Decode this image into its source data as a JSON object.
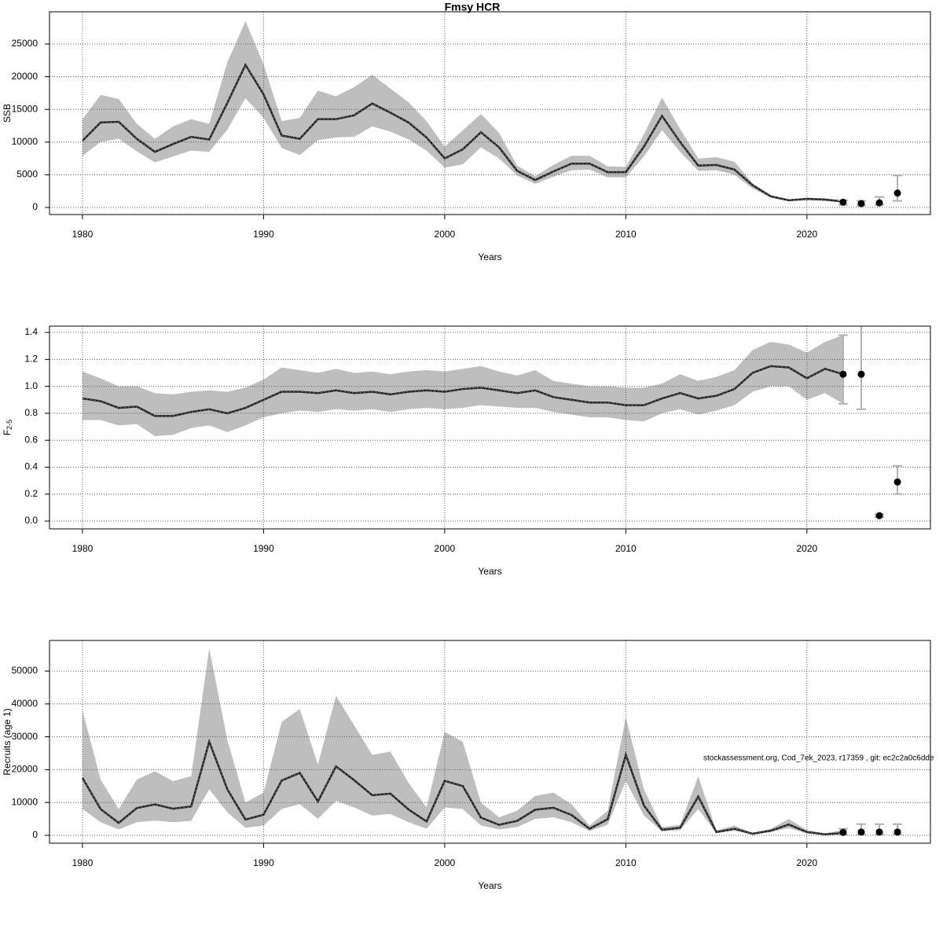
{
  "chart_data": [
    {
      "type": "line",
      "title": "Fmsy HCR",
      "xlabel": "Years",
      "ylabel": "SSB",
      "x": [
        1980,
        1981,
        1982,
        1983,
        1984,
        1985,
        1986,
        1987,
        1988,
        1989,
        1990,
        1991,
        1992,
        1993,
        1994,
        1995,
        1996,
        1997,
        1998,
        1999,
        2000,
        2001,
        2002,
        2003,
        2004,
        2005,
        2006,
        2007,
        2008,
        2009,
        2010,
        2011,
        2012,
        2013,
        2014,
        2015,
        2016,
        2017,
        2018,
        2019,
        2020,
        2021,
        2022
      ],
      "values": [
        10200,
        13000,
        13100,
        10500,
        8500,
        9700,
        10800,
        10400,
        16000,
        21800,
        17300,
        11000,
        10500,
        13500,
        13500,
        14100,
        15900,
        14500,
        13000,
        10700,
        7500,
        8900,
        11500,
        9200,
        5600,
        4200,
        5500,
        6700,
        6700,
        5400,
        5400,
        9300,
        14000,
        10000,
        6400,
        6500,
        5800,
        3400,
        1700,
        1100,
        1300,
        1200,
        900
      ],
      "lower": [
        7900,
        10000,
        10500,
        8600,
        6900,
        7800,
        8700,
        8500,
        11900,
        16700,
        13700,
        9100,
        8000,
        10300,
        10700,
        10800,
        12400,
        11600,
        10400,
        8700,
        6100,
        6600,
        9200,
        7500,
        4900,
        3600,
        4700,
        5700,
        5800,
        4600,
        4600,
        7800,
        11800,
        8500,
        5600,
        5700,
        5000,
        2900,
        1500,
        950,
        1150,
        1000,
        750
      ],
      "upper": [
        13500,
        17200,
        16600,
        12800,
        10500,
        12400,
        13500,
        12800,
        22200,
        28500,
        21900,
        13200,
        13700,
        17900,
        17000,
        18400,
        20300,
        18200,
        16100,
        13200,
        9300,
        11800,
        14300,
        11400,
        6400,
        4800,
        6500,
        7900,
        7900,
        6300,
        6200,
        11200,
        16800,
        12000,
        7500,
        7700,
        7000,
        3700,
        1900,
        1200,
        1500,
        1400,
        1100
      ],
      "forecast": {
        "x": [
          2022,
          2023,
          2024,
          2025
        ],
        "values": [
          800,
          600,
          700,
          2200
        ],
        "lower": [
          400,
          300,
          400,
          1000
        ],
        "upper": [
          1100,
          1000,
          1600,
          4900
        ]
      },
      "xlim": [
        1978.18,
        2026.82
      ],
      "xticks": [
        1980,
        1990,
        2000,
        2010,
        2020
      ],
      "ylim": [
        -1082,
        29930
      ],
      "yticks": [
        0,
        5000,
        10000,
        15000,
        20000,
        25000
      ],
      "grid": true,
      "band_color": "#bebebe",
      "line_color": "#222222",
      "point_color": "#000000",
      "whisker_color": "#b0b0b0"
    },
    {
      "type": "line",
      "xlabel": "Years",
      "ylabel": "F",
      "ylabel_subscript": "2-5",
      "x": [
        1980,
        1981,
        1982,
        1983,
        1984,
        1985,
        1986,
        1987,
        1988,
        1989,
        1990,
        1991,
        1992,
        1993,
        1994,
        1995,
        1996,
        1997,
        1998,
        1999,
        2000,
        2001,
        2002,
        2003,
        2004,
        2005,
        2006,
        2007,
        2008,
        2009,
        2010,
        2011,
        2012,
        2013,
        2014,
        2015,
        2016,
        2017,
        2018,
        2019,
        2020,
        2021,
        2022
      ],
      "values": [
        0.91,
        0.89,
        0.84,
        0.85,
        0.78,
        0.78,
        0.81,
        0.83,
        0.8,
        0.84,
        0.9,
        0.96,
        0.96,
        0.95,
        0.97,
        0.95,
        0.96,
        0.94,
        0.96,
        0.97,
        0.96,
        0.98,
        0.99,
        0.97,
        0.95,
        0.97,
        0.92,
        0.9,
        0.88,
        0.88,
        0.86,
        0.86,
        0.91,
        0.95,
        0.91,
        0.93,
        0.98,
        1.1,
        1.15,
        1.14,
        1.06,
        1.13,
        1.09
      ],
      "lower": [
        0.75,
        0.75,
        0.71,
        0.72,
        0.63,
        0.64,
        0.69,
        0.71,
        0.66,
        0.71,
        0.77,
        0.8,
        0.82,
        0.81,
        0.83,
        0.82,
        0.83,
        0.81,
        0.83,
        0.84,
        0.83,
        0.84,
        0.86,
        0.85,
        0.84,
        0.84,
        0.81,
        0.79,
        0.77,
        0.77,
        0.75,
        0.74,
        0.8,
        0.83,
        0.79,
        0.82,
        0.86,
        0.96,
        1.0,
        1.0,
        0.9,
        0.95,
        0.87
      ],
      "upper": [
        1.11,
        1.06,
        1.0,
        1.0,
        0.95,
        0.94,
        0.96,
        0.97,
        0.96,
        0.99,
        1.05,
        1.14,
        1.12,
        1.1,
        1.13,
        1.1,
        1.11,
        1.09,
        1.11,
        1.12,
        1.11,
        1.13,
        1.15,
        1.11,
        1.08,
        1.12,
        1.04,
        1.02,
        1.0,
        1.0,
        0.99,
        0.99,
        1.02,
        1.09,
        1.04,
        1.07,
        1.12,
        1.27,
        1.33,
        1.31,
        1.25,
        1.33,
        1.38
      ],
      "forecast": {
        "x": [
          2022,
          2023,
          2024,
          2025
        ],
        "values": [
          1.09,
          1.09,
          0.04,
          0.29
        ],
        "lower": [
          0.87,
          0.83,
          0.03,
          0.2
        ],
        "upper": [
          1.38,
          1.45,
          0.05,
          0.41
        ]
      },
      "xlim": [
        1978.18,
        2026.82
      ],
      "xticks": [
        1980,
        1990,
        2000,
        2010,
        2020
      ],
      "ylim": [
        -0.058,
        1.447
      ],
      "yticks": [
        {
          "value": 0,
          "label": "0.0"
        },
        0.2,
        0.4,
        0.6,
        0.8,
        {
          "value": 1,
          "label": "1.0"
        },
        1.2,
        1.4
      ],
      "grid": true,
      "band_color": "#bebebe",
      "line_color": "#222222",
      "point_color": "#000000",
      "whisker_color": "#b0b0b0"
    },
    {
      "type": "line",
      "xlabel": "Years",
      "ylabel": "Recruits (age 1)",
      "annotation": "stockassessment.org, Cod_7ek_2023, r17359 , git: ec2c2a0c6dde",
      "x": [
        1980,
        1981,
        1982,
        1983,
        1984,
        1985,
        1986,
        1987,
        1988,
        1989,
        1990,
        1991,
        1992,
        1993,
        1994,
        1995,
        1996,
        1997,
        1998,
        1999,
        2000,
        2001,
        2002,
        2003,
        2004,
        2005,
        2006,
        2007,
        2008,
        2009,
        2010,
        2011,
        2012,
        2013,
        2014,
        2015,
        2016,
        2017,
        2018,
        2019,
        2020,
        2021,
        2022
      ],
      "values": [
        17500,
        8000,
        3800,
        8300,
        9400,
        8100,
        8800,
        28500,
        14000,
        4800,
        6300,
        16700,
        19000,
        10300,
        21000,
        16800,
        12200,
        12700,
        7900,
        4200,
        16600,
        15000,
        5400,
        3200,
        4400,
        7800,
        8400,
        6200,
        2000,
        4900,
        24500,
        9100,
        1700,
        2300,
        11800,
        1000,
        2000,
        500,
        1400,
        3300,
        1000,
        300,
        700
      ],
      "lower": [
        8000,
        4000,
        1800,
        4000,
        4500,
        4000,
        4400,
        14000,
        7000,
        2300,
        3000,
        8000,
        9500,
        5000,
        10500,
        8500,
        6000,
        6500,
        4000,
        2000,
        8500,
        8000,
        3000,
        1800,
        2500,
        5000,
        5500,
        4000,
        1300,
        3200,
        16500,
        6000,
        1200,
        1600,
        8000,
        700,
        1400,
        350,
        1000,
        2200,
        600,
        150,
        300
      ],
      "upper": [
        38000,
        17000,
        8000,
        17000,
        19500,
        16500,
        18000,
        57000,
        29000,
        10000,
        13000,
        34500,
        38500,
        21500,
        42500,
        33500,
        24500,
        25500,
        16000,
        8500,
        31500,
        28500,
        10000,
        5500,
        7500,
        12000,
        13000,
        9500,
        3000,
        7500,
        36000,
        14000,
        2500,
        3200,
        18000,
        1500,
        3000,
        700,
        2000,
        5000,
        1600,
        600,
        1700
      ],
      "forecast": {
        "x": [
          2022,
          2023,
          2024,
          2025
        ],
        "values": [
          900,
          1000,
          1000,
          1000
        ],
        "lower": [
          200,
          300,
          300,
          300
        ],
        "upper": [
          2000,
          3400,
          3400,
          3400
        ]
      },
      "xlim": [
        1978.18,
        2026.82
      ],
      "xticks": [
        1980,
        1990,
        2000,
        2010,
        2020
      ],
      "ylim": [
        -2392,
        59330
      ],
      "yticks": [
        0,
        10000,
        20000,
        30000,
        40000,
        50000
      ],
      "grid": true,
      "band_color": "#bebebe",
      "line_color": "#222222",
      "point_color": "#000000",
      "whisker_color": "#b0b0b0"
    }
  ]
}
